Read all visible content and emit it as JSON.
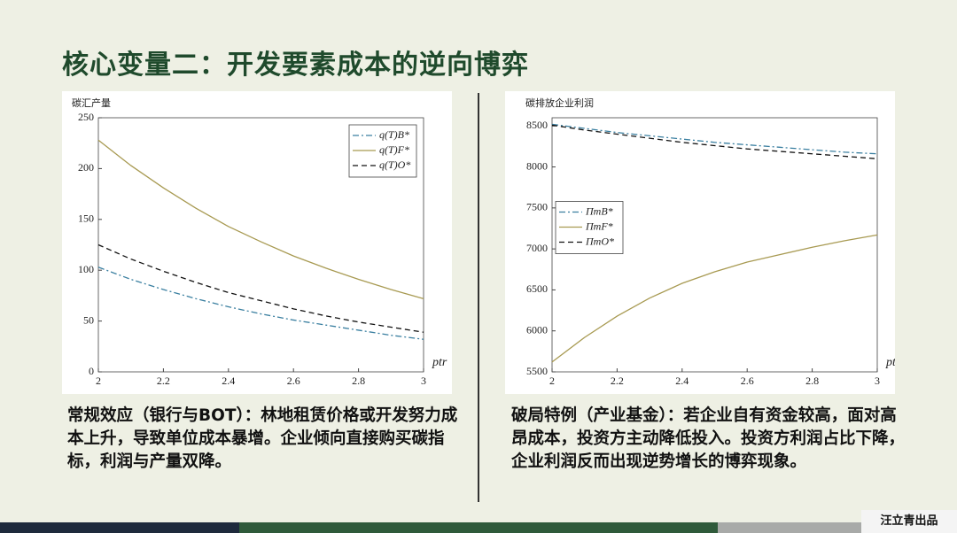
{
  "slide_title": "核心变量二：开发要素成本的逆向博弈",
  "chart_data": [
    {
      "type": "line",
      "y_label": "碳汇产量",
      "x_label": "ptr",
      "x": [
        2,
        2.1,
        2.2,
        2.3,
        2.4,
        2.5,
        2.6,
        2.7,
        2.8,
        2.9,
        3
      ],
      "xlim": [
        2,
        3
      ],
      "xticks": [
        2,
        2.2,
        2.4,
        2.6,
        2.8,
        3
      ],
      "ylim": [
        0,
        250
      ],
      "yticks": [
        0,
        50,
        100,
        150,
        200,
        250
      ],
      "legend": "upper right",
      "series": [
        {
          "name": "q(T)B*",
          "color": "#3a7fa0",
          "dash": "dashdot",
          "values": [
            103,
            91,
            81,
            72,
            64,
            57,
            51,
            46,
            41,
            36,
            32
          ]
        },
        {
          "name": "q(T)F*",
          "color": "#a89a52",
          "dash": "solid",
          "values": [
            228,
            203,
            181,
            161,
            143,
            128,
            114,
            102,
            91,
            81,
            72
          ]
        },
        {
          "name": "q(T)O*",
          "color": "#111111",
          "dash": "dashed",
          "values": [
            125,
            111,
            99,
            88,
            78,
            70,
            62,
            55,
            49,
            44,
            39
          ]
        }
      ]
    },
    {
      "type": "line",
      "y_label": "碳排放企业利润",
      "x_label": "ptr",
      "x": [
        2,
        2.1,
        2.2,
        2.3,
        2.4,
        2.5,
        2.6,
        2.7,
        2.8,
        2.9,
        3
      ],
      "xlim": [
        2,
        3
      ],
      "xticks": [
        2,
        2.2,
        2.4,
        2.6,
        2.8,
        3
      ],
      "ylim": [
        5500,
        8600
      ],
      "yticks": [
        5500,
        6000,
        6500,
        7000,
        7500,
        8000,
        8500
      ],
      "legend": "center left",
      "series": [
        {
          "name": "ΠmB*",
          "color": "#3a7fa0",
          "dash": "dashdot",
          "values": [
            8520,
            8470,
            8420,
            8380,
            8340,
            8300,
            8270,
            8240,
            8210,
            8180,
            8160
          ]
        },
        {
          "name": "ΠmF*",
          "color": "#a89a52",
          "dash": "solid",
          "values": [
            5620,
            5920,
            6180,
            6400,
            6580,
            6720,
            6840,
            6930,
            7020,
            7100,
            7170
          ]
        },
        {
          "name": "ΠmO*",
          "color": "#111111",
          "dash": "dashed",
          "values": [
            8510,
            8450,
            8400,
            8350,
            8300,
            8260,
            8220,
            8190,
            8160,
            8130,
            8100
          ]
        }
      ]
    }
  ],
  "notes": [
    {
      "heading": "常规效应（银行与BOT）：",
      "text": "林地租赁价格或开发努力成本上升，导致单位成本暴增。企业倾向直接购买碳指标，利润与产量双降。"
    },
    {
      "heading": "破局特例（产业基金）：",
      "text": "若企业自有资金较高，面对高昂成本，投资方主动降低投入。投资方利润占比下降，企业利润反而出现逆势增长的博弈现象。"
    }
  ],
  "credit": "汪立青出品"
}
